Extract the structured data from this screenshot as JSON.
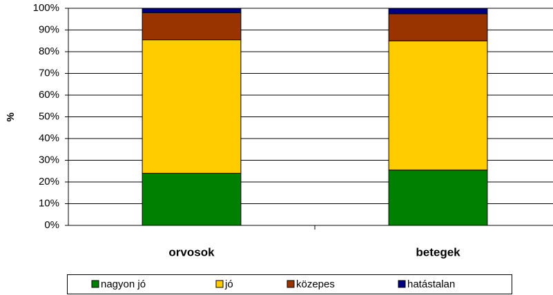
{
  "chart_data": {
    "type": "stacked_bar",
    "y_label": "%",
    "categories": [
      "orvosok",
      "betegek"
    ],
    "series": [
      {
        "name": "nagyon jó",
        "color": "#008000",
        "values": [
          24,
          25.5
        ]
      },
      {
        "name": "jó",
        "color": "#ffcc00",
        "values": [
          61.5,
          59.5
        ]
      },
      {
        "name": "közepes",
        "color": "#993300",
        "values": [
          12.5,
          12.5
        ]
      },
      {
        "name": "hatástalan",
        "color": "#000080",
        "values": [
          2,
          2.5
        ]
      }
    ],
    "ylim": [
      0,
      100
    ],
    "yticks": [
      {
        "value": 0,
        "label": "0%"
      },
      {
        "value": 10,
        "label": "10%"
      },
      {
        "value": 20,
        "label": "20%"
      },
      {
        "value": 30,
        "label": "30%"
      },
      {
        "value": 40,
        "label": "40%"
      },
      {
        "value": 50,
        "label": "50%"
      },
      {
        "value": 60,
        "label": "60%"
      },
      {
        "value": 70,
        "label": "70%"
      },
      {
        "value": 80,
        "label": "80%"
      },
      {
        "value": 90,
        "label": "90%"
      },
      {
        "value": 100,
        "label": "100%"
      }
    ],
    "grid": true,
    "legend": "bottom"
  }
}
